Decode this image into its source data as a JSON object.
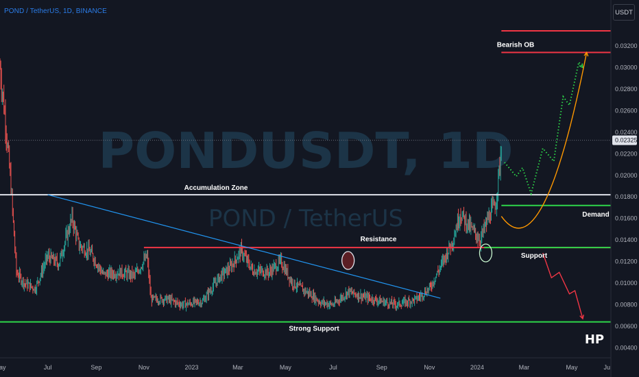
{
  "header": {
    "symbol_title": "POND / TetherUS, 1D, BINANCE",
    "currency": "USDT"
  },
  "watermark": {
    "ticker": "PONDUSDT, 1D",
    "pair": "POND / TetherUS"
  },
  "brand_mark": "HP",
  "colors": {
    "background": "#131722",
    "bull": "#26a69a",
    "bear": "#ef5350",
    "resistance": "#f23645",
    "support": "#2ed64a",
    "trendline": "#2196f3",
    "zone_line": "#e0e3eb",
    "projection_up": "#2ed64a",
    "projection_curve": "#ff9800",
    "projection_down": "#f23645"
  },
  "chart_data": {
    "type": "candlestick",
    "title": "POND / TetherUS, 1D, BINANCE",
    "y_scale": "linear",
    "ylim": [
      0.0032,
      0.0341
    ],
    "y_ticks": [
      "0.03200",
      "0.03000",
      "0.02800",
      "0.02600",
      "0.02400",
      "0.02200",
      "0.02000",
      "0.01800",
      "0.01600",
      "0.01400",
      "0.01200",
      "0.01000",
      "0.00800",
      "0.00600",
      "0.00400"
    ],
    "x_ticks": [
      "May",
      "Jul",
      "Sep",
      "Nov",
      "2023",
      "Mar",
      "May",
      "Jul",
      "Sep",
      "Nov",
      "2024",
      "Mar",
      "May",
      "Ju"
    ],
    "x_range": [
      "2022-05-01",
      "2024-06-20"
    ],
    "last_price": "0.02325",
    "grid": false,
    "levels": [
      {
        "label": "Bearish OB",
        "price": 0.0314,
        "start": "2024-02-01",
        "color": "#f23645"
      },
      {
        "label": "",
        "price": 0.0334,
        "start": "2024-02-01",
        "color": "#f23645"
      },
      {
        "label": "Accumulation Zone",
        "price": 0.0182,
        "start": "2022-05-01",
        "color": "#e0e3eb"
      },
      {
        "label": "Demand",
        "price": 0.0172,
        "start": "2024-02-01",
        "color": "#2ed64a"
      },
      {
        "label": "Resistance",
        "price": 0.0133,
        "start": "2022-11-01",
        "color": "#f23645"
      },
      {
        "label": "Support",
        "price": 0.0133,
        "start": "2024-01-10",
        "color": "#2ed64a"
      },
      {
        "label": "Strong Support",
        "price": 0.0064,
        "start": "2022-05-01",
        "color": "#2ed64a"
      }
    ],
    "trendline": {
      "from": [
        "2022-07-01",
        0.0182
      ],
      "to": [
        "2023-11-15",
        0.0086
      ]
    },
    "markers": [
      {
        "date": "2023-07-20",
        "price": 0.0121,
        "kind": "red-circle"
      },
      {
        "date": "2024-01-12",
        "price": 0.0128,
        "kind": "green-circle"
      }
    ],
    "price_path": [
      [
        "2022-05-01",
        0.03
      ],
      [
        "2022-05-08",
        0.025
      ],
      [
        "2022-05-15",
        0.019
      ],
      [
        "2022-05-22",
        0.011
      ],
      [
        "2022-06-01",
        0.01
      ],
      [
        "2022-06-15",
        0.0095
      ],
      [
        "2022-07-01",
        0.0125
      ],
      [
        "2022-07-15",
        0.0118
      ],
      [
        "2022-08-01",
        0.016
      ],
      [
        "2022-08-10",
        0.0135
      ],
      [
        "2022-08-25",
        0.0128
      ],
      [
        "2022-09-10",
        0.0108
      ],
      [
        "2022-10-01",
        0.011
      ],
      [
        "2022-10-20",
        0.0107
      ],
      [
        "2022-11-05",
        0.0125
      ],
      [
        "2022-11-10",
        0.0085
      ],
      [
        "2022-12-01",
        0.0085
      ],
      [
        "2022-12-20",
        0.008
      ],
      [
        "2023-01-15",
        0.0083
      ],
      [
        "2023-02-05",
        0.0105
      ],
      [
        "2023-02-20",
        0.0115
      ],
      [
        "2023-03-05",
        0.013
      ],
      [
        "2023-03-20",
        0.0112
      ],
      [
        "2023-04-10",
        0.011
      ],
      [
        "2023-04-25",
        0.012
      ],
      [
        "2023-05-10",
        0.01
      ],
      [
        "2023-06-01",
        0.009
      ],
      [
        "2023-06-15",
        0.0082
      ],
      [
        "2023-07-01",
        0.008
      ],
      [
        "2023-07-20",
        0.0092
      ],
      [
        "2023-08-10",
        0.0087
      ],
      [
        "2023-09-01",
        0.0083
      ],
      [
        "2023-09-20",
        0.008
      ],
      [
        "2023-10-15",
        0.0085
      ],
      [
        "2023-11-01",
        0.0095
      ],
      [
        "2023-11-15",
        0.0115
      ],
      [
        "2023-12-01",
        0.014
      ],
      [
        "2023-12-10",
        0.0165
      ],
      [
        "2023-12-25",
        0.015
      ],
      [
        "2024-01-05",
        0.014
      ],
      [
        "2024-01-15",
        0.016
      ],
      [
        "2024-01-25",
        0.0175
      ],
      [
        "2024-02-01",
        0.0225
      ]
    ],
    "projections": [
      {
        "style": "dotted",
        "color": "#2ed64a",
        "points": [
          [
            "2024-02-05",
            0.0212
          ],
          [
            "2024-02-20",
            0.0199
          ],
          [
            "2024-02-28",
            0.0207
          ],
          [
            "2024-03-10",
            0.0183
          ],
          [
            "2024-03-25",
            0.0225
          ],
          [
            "2024-04-08",
            0.0213
          ],
          [
            "2024-04-20",
            0.0273
          ],
          [
            "2024-04-28",
            0.0265
          ],
          [
            "2024-05-10",
            0.0305
          ],
          [
            "2024-05-15",
            0.03
          ]
        ]
      },
      {
        "style": "curve",
        "color": "#ff9800",
        "points": [
          [
            "2024-02-01",
            0.0162
          ],
          [
            "2024-03-25",
            0.0134
          ],
          [
            "2024-05-20",
            0.0314
          ]
        ]
      },
      {
        "style": "solid",
        "color": "#f23645",
        "points": [
          [
            "2024-03-25",
            0.0128
          ],
          [
            "2024-04-05",
            0.0105
          ],
          [
            "2024-04-15",
            0.011
          ],
          [
            "2024-04-28",
            0.009
          ],
          [
            "2024-05-05",
            0.0093
          ],
          [
            "2024-05-15",
            0.0067
          ]
        ]
      }
    ]
  }
}
